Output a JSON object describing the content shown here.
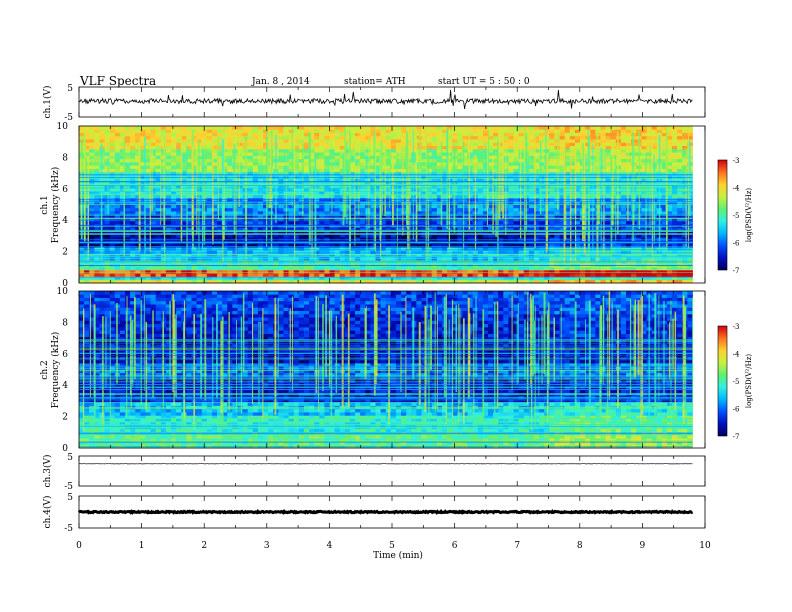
{
  "header": {
    "title": "VLF  Spectra",
    "date": "Jan.  8  ,  2014",
    "station": "station= ATH",
    "start": "start  UT  =    5  : 50 : 0"
  },
  "colors": {
    "colormap": [
      "#000060",
      "#0010c0",
      "#0050ff",
      "#00b8ff",
      "#30f0e0",
      "#60f070",
      "#c8f040",
      "#ffd030",
      "#ff7020",
      "#d00010",
      "#ffffff"
    ],
    "trace": "#000000",
    "background": "#ffffff"
  },
  "chart_data": [
    {
      "type": "line",
      "name": "ch1",
      "ylabel": "ch.1(V)",
      "ylim": [
        -5,
        5
      ],
      "yticks": [
        "5",
        "-5"
      ],
      "xlim": [
        0,
        10
      ],
      "x_end": 9.8,
      "baseline": 0.3,
      "noise_amplitude": 0.8
    },
    {
      "type": "heatmap",
      "name": "ch1-spectrogram",
      "ylabel_channel": "ch.1",
      "ylabel": "Frequency  (kHz)",
      "ylim": [
        0,
        10
      ],
      "yticks": [
        "0",
        "2",
        "4",
        "6",
        "8",
        "10"
      ],
      "xlim": [
        0,
        10
      ],
      "x_end": 9.8,
      "colorbar": {
        "label": "log(PSD(V²/Hz)",
        "range": [
          -7,
          -3
        ],
        "ticks": [
          "-3",
          "-4",
          "-5",
          "-6",
          "-7"
        ]
      },
      "bands": [
        {
          "f": [
            0,
            0.3
          ],
          "value": -4.2
        },
        {
          "f": [
            0.3,
            0.5
          ],
          "value": -5.3
        },
        {
          "f": [
            0.5,
            0.8
          ],
          "value": -3.3
        },
        {
          "f": [
            0.8,
            1.5
          ],
          "value": -5.0
        },
        {
          "f": [
            1.5,
            2.3
          ],
          "value": -5.6
        },
        {
          "f": [
            2.3,
            3.3
          ],
          "value": -6.7
        },
        {
          "f": [
            3.3,
            4.3
          ],
          "value": -6.3
        },
        {
          "f": [
            4.3,
            5.5
          ],
          "value": -5.9
        },
        {
          "f": [
            5.5,
            7.0
          ],
          "value": -5.3
        },
        {
          "f": [
            7.0,
            8.5
          ],
          "value": -4.6
        },
        {
          "f": [
            8.5,
            10.0
          ],
          "value": -4.1
        }
      ]
    },
    {
      "type": "heatmap",
      "name": "ch2-spectrogram",
      "ylabel_channel": "ch.2",
      "ylabel": "Frequency  (kHz)",
      "ylim": [
        0,
        10
      ],
      "yticks": [
        "0",
        "2",
        "4",
        "6",
        "8",
        "10"
      ],
      "xlim": [
        0,
        10
      ],
      "x_end": 9.8,
      "colorbar": {
        "label": "log(PSD(V²/Hz)",
        "range": [
          -7,
          -3
        ],
        "ticks": [
          "-3",
          "-4",
          "-5",
          "-6",
          "-7"
        ]
      },
      "bands": [
        {
          "f": [
            0,
            0.3
          ],
          "value": -4.8
        },
        {
          "f": [
            0.3,
            1.0
          ],
          "value": -4.9
        },
        {
          "f": [
            1.0,
            2.0
          ],
          "value": -5.2
        },
        {
          "f": [
            2.0,
            3.0
          ],
          "value": -5.6
        },
        {
          "f": [
            3.0,
            4.5
          ],
          "value": -6.5
        },
        {
          "f": [
            4.5,
            5.5
          ],
          "value": -6.0
        },
        {
          "f": [
            5.5,
            7.0
          ],
          "value": -6.6
        },
        {
          "f": [
            7.0,
            8.5
          ],
          "value": -6.4
        },
        {
          "f": [
            8.5,
            10.0
          ],
          "value": -6.2
        }
      ]
    },
    {
      "type": "line",
      "name": "ch3",
      "ylabel": "ch.3(V)",
      "ylim": [
        -5,
        5
      ],
      "yticks": [
        "5",
        "-5"
      ],
      "xlim": [
        0,
        10
      ],
      "x_end": 9.8,
      "baseline": 2.4,
      "noise_amplitude": 0.05
    },
    {
      "type": "line",
      "name": "ch4",
      "ylabel": "ch.4(V)",
      "ylim": [
        -5,
        5
      ],
      "yticks": [
        "5",
        "-5"
      ],
      "xlim": [
        0,
        10
      ],
      "x_end": 9.8,
      "baseline": 0.0,
      "noise_amplitude": 0.2,
      "xlabel": "Time  (min)",
      "xticks": [
        "0",
        "1",
        "2",
        "3",
        "4",
        "5",
        "6",
        "7",
        "8",
        "9",
        "10"
      ]
    }
  ]
}
